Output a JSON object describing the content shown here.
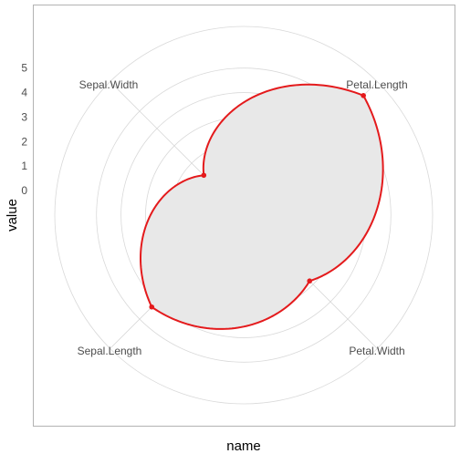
{
  "chart_data": {
    "type": "radar",
    "coord": "polar",
    "xlabel": "name",
    "ylabel": "value",
    "categories": [
      "Sepal.Length",
      "Sepal.Width",
      "Petal.Length",
      "Petal.Width"
    ],
    "series": [
      {
        "values": [
          5.9,
          2.8,
          4.3,
          1.3
        ],
        "color": "#e41a1c"
      }
    ],
    "radial_ticks": [
      0,
      1,
      2,
      3,
      4,
      5
    ],
    "radial_range": [
      -1,
      6.7
    ],
    "grid": true,
    "fill": "#e8e8e8",
    "grid_color": "#d9d9d9",
    "panel_border_color": "#b3b3b3",
    "text_color": "#4d4d4d"
  }
}
